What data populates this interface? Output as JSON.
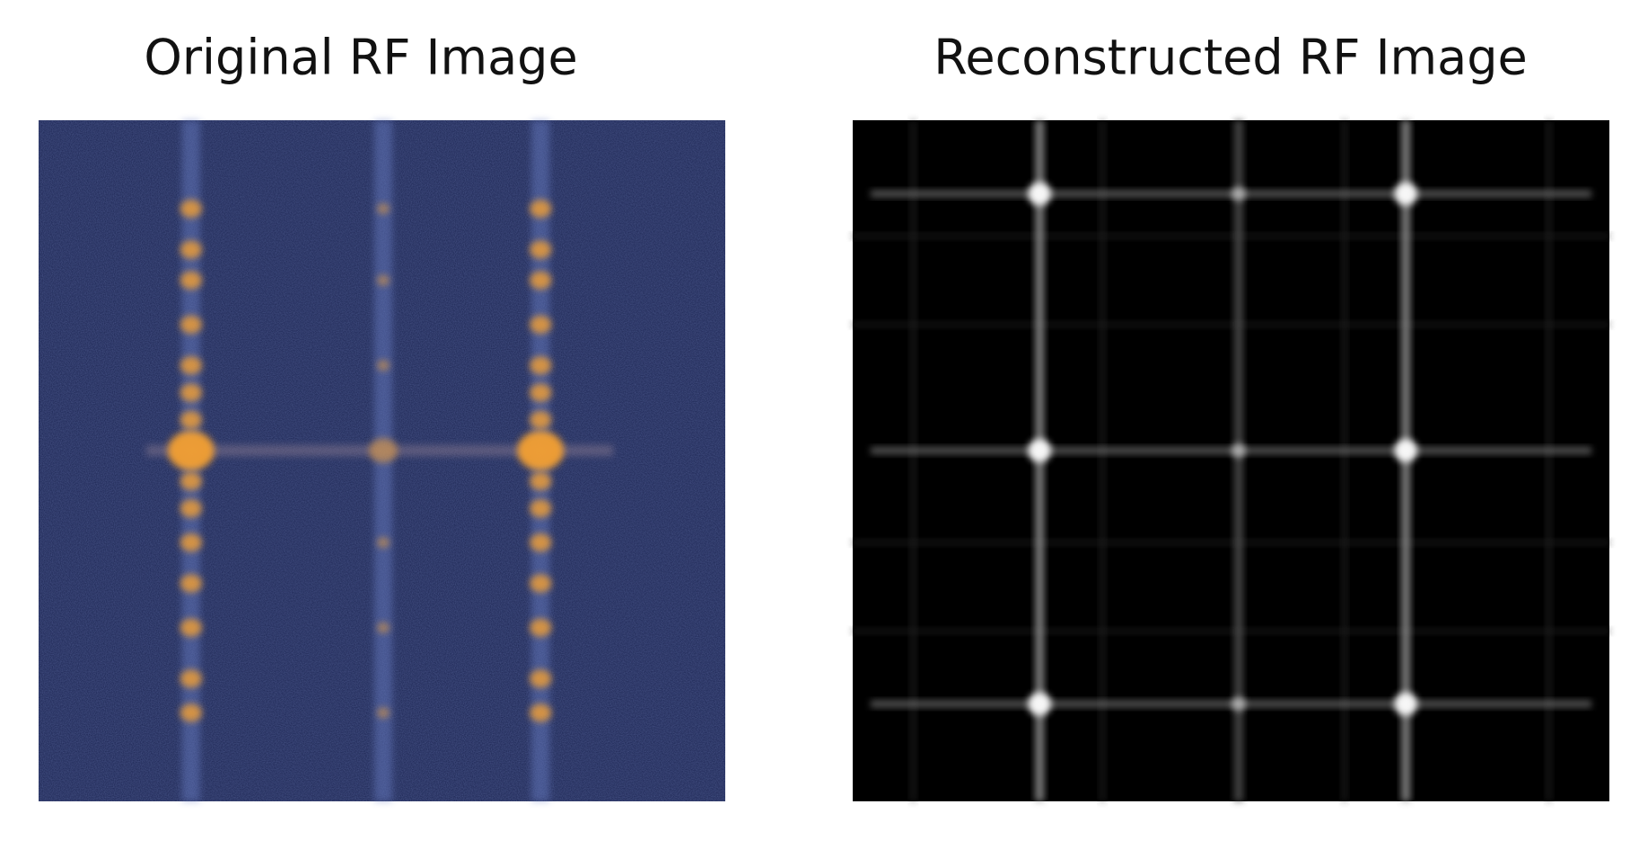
{
  "panels": [
    {
      "title": "Original RF Image"
    },
    {
      "title": "Reconstructed RF Image"
    }
  ]
}
